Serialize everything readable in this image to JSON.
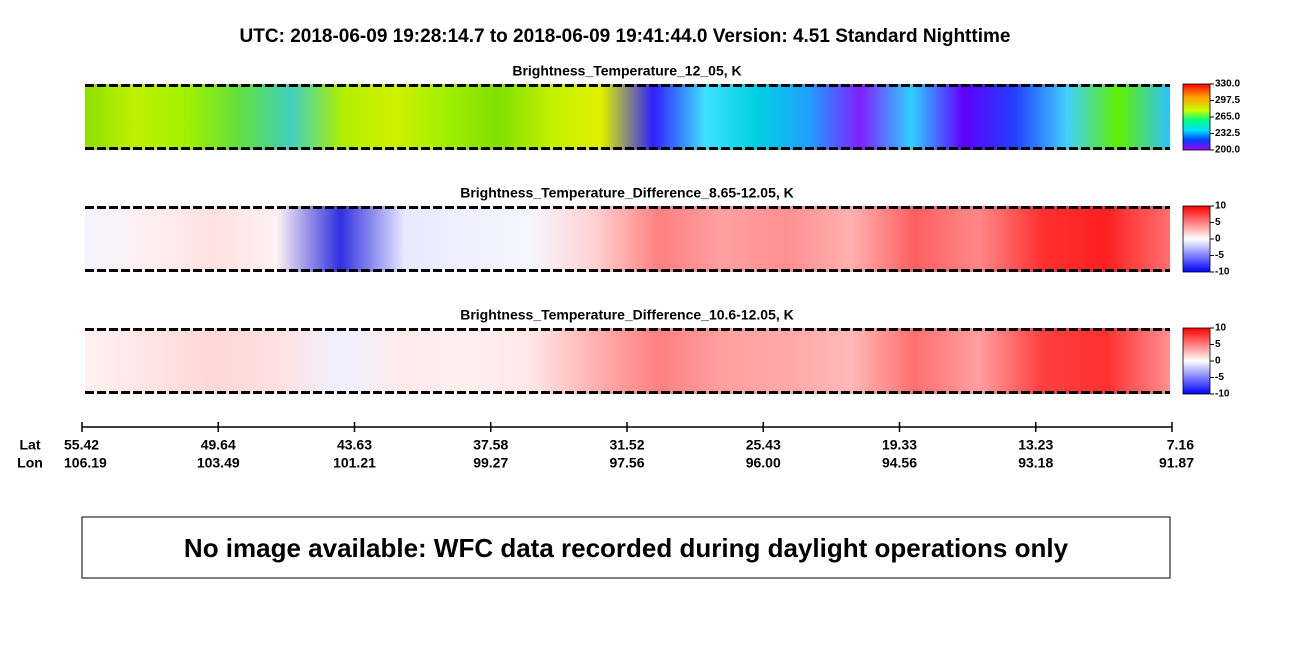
{
  "header": {
    "title": "UTC:  2018-06-09   19:28:14.7  to  2018-06-09   19:41:44.0    Version: 4.51  Standard Nighttime"
  },
  "panels": [
    {
      "title": "Brightness_Temperature_12_05, K",
      "colorbar_ticks": [
        "330.0",
        "297.5",
        "265.0",
        "232.5",
        "200.0"
      ]
    },
    {
      "title": "Brightness_Temperature_Difference_8.65-12.05, K",
      "colorbar_ticks": [
        "10",
        "5",
        "0",
        "-5",
        "-10"
      ]
    },
    {
      "title": "Brightness_Temperature_Difference_10.6-12.05, K",
      "colorbar_ticks": [
        "10",
        "5",
        "0",
        "-5",
        "-10"
      ]
    }
  ],
  "axis": {
    "lat_label": "Lat",
    "lon_label": "Lon",
    "lat": [
      "55.42",
      "49.64",
      "43.63",
      "37.58",
      "31.52",
      "25.43",
      "19.33",
      "13.23",
      "7.16"
    ],
    "lon": [
      "106.19",
      "103.49",
      "101.21",
      "99.27",
      "97.56",
      "96.00",
      "94.56",
      "93.18",
      "91.87"
    ]
  },
  "message": "No image available: WFC data recorded during daylight operations only"
}
